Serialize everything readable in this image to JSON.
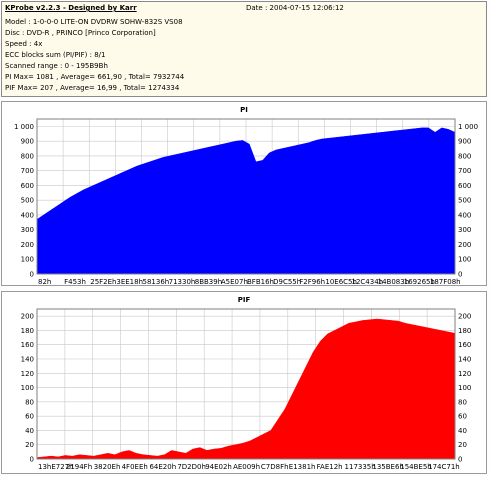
{
  "header": {
    "app_title": "KProbe v2.2.3 - Designed by Karr",
    "date": "Date : 2004-07-15 12:06:12",
    "model": "Model : 1-0-0-0 LITE-ON DVDRW SOHW-832S  VS08",
    "disc": "Disc : DVD-R , PRINCO [Princo Corporation]",
    "speed": "Speed : 4x",
    "ecc": "ECC blocks sum (PI/PIF) : 8/1",
    "scanned": "Scanned range : 0 - 195B9Bh",
    "pi_stats": "PI Max= 1081 , Average= 661,90 , Total= 7932744",
    "pif_stats": "PIF Max= 207 , Average= 16,99 , Total= 1274334"
  },
  "colors": {
    "pi": "#0000ff",
    "pif": "#ff0000",
    "grid": "#c8c8c8"
  },
  "chart_data": [
    {
      "type": "area",
      "title": "PI",
      "ylim": [
        0,
        1050
      ],
      "yticks": [
        "0",
        "100",
        "200",
        "300",
        "400",
        "500",
        "600",
        "700",
        "800",
        "900",
        "1 000"
      ],
      "yticks_right": [
        "0",
        "100",
        "200",
        "300",
        "400",
        "500",
        "600",
        "700",
        "800",
        "900",
        "1 000"
      ],
      "xticks": [
        "82h",
        "F453h",
        "25F2Eh",
        "3EE18h",
        "58136h",
        "71330h",
        "8BB39h",
        "A5E07h",
        "BFB16h",
        "D9C55h",
        "F2F96h",
        "10E6C5h",
        "12C434h",
        "14B083h",
        "169265h",
        "187F08h"
      ],
      "grid": true,
      "series": [
        {
          "values": [
            370,
            400,
            430,
            460,
            490,
            520,
            545,
            570,
            590,
            610,
            630,
            650,
            670,
            690,
            710,
            730,
            745,
            760,
            775,
            790,
            800,
            810,
            820,
            830,
            840,
            850,
            860,
            870,
            880,
            890,
            900,
            905,
            880,
            760,
            770,
            820,
            840,
            850,
            860,
            870,
            880,
            890,
            905,
            915,
            920,
            925,
            930,
            935,
            940,
            945,
            950,
            955,
            960,
            965,
            970,
            975,
            980,
            985,
            990,
            990,
            960,
            990,
            980,
            960
          ]
        }
      ]
    },
    {
      "type": "area",
      "title": "PIF",
      "ylim": [
        0,
        210
      ],
      "yticks": [
        "0",
        "20",
        "40",
        "60",
        "80",
        "100",
        "120",
        "140",
        "160",
        "180",
        "200"
      ],
      "yticks_right": [
        "0",
        "20",
        "40",
        "60",
        "80",
        "100",
        "120",
        "140",
        "160",
        "180",
        "200"
      ],
      "xticks": [
        "13hE727h",
        "2194Fh",
        "3820Eh",
        "4F0EEh",
        "64E20h",
        "7D2D0h",
        "94E02h",
        "AE009h",
        "C7D8Fh",
        "E1381h",
        "FAE12h",
        "117335h",
        "135BE6h",
        "154BE5h",
        "174C71h"
      ],
      "grid": true,
      "series": [
        {
          "values": [
            2,
            3,
            4,
            3,
            5,
            4,
            6,
            5,
            4,
            6,
            8,
            6,
            10,
            12,
            8,
            6,
            5,
            4,
            6,
            12,
            10,
            8,
            14,
            16,
            12,
            14,
            15,
            18,
            20,
            22,
            25,
            30,
            35,
            40,
            55,
            70,
            90,
            110,
            130,
            150,
            165,
            175,
            180,
            185,
            190,
            192,
            194,
            195,
            196,
            195,
            194,
            193,
            190,
            188,
            186,
            184,
            182,
            180,
            178,
            176
          ]
        }
      ]
    }
  ]
}
